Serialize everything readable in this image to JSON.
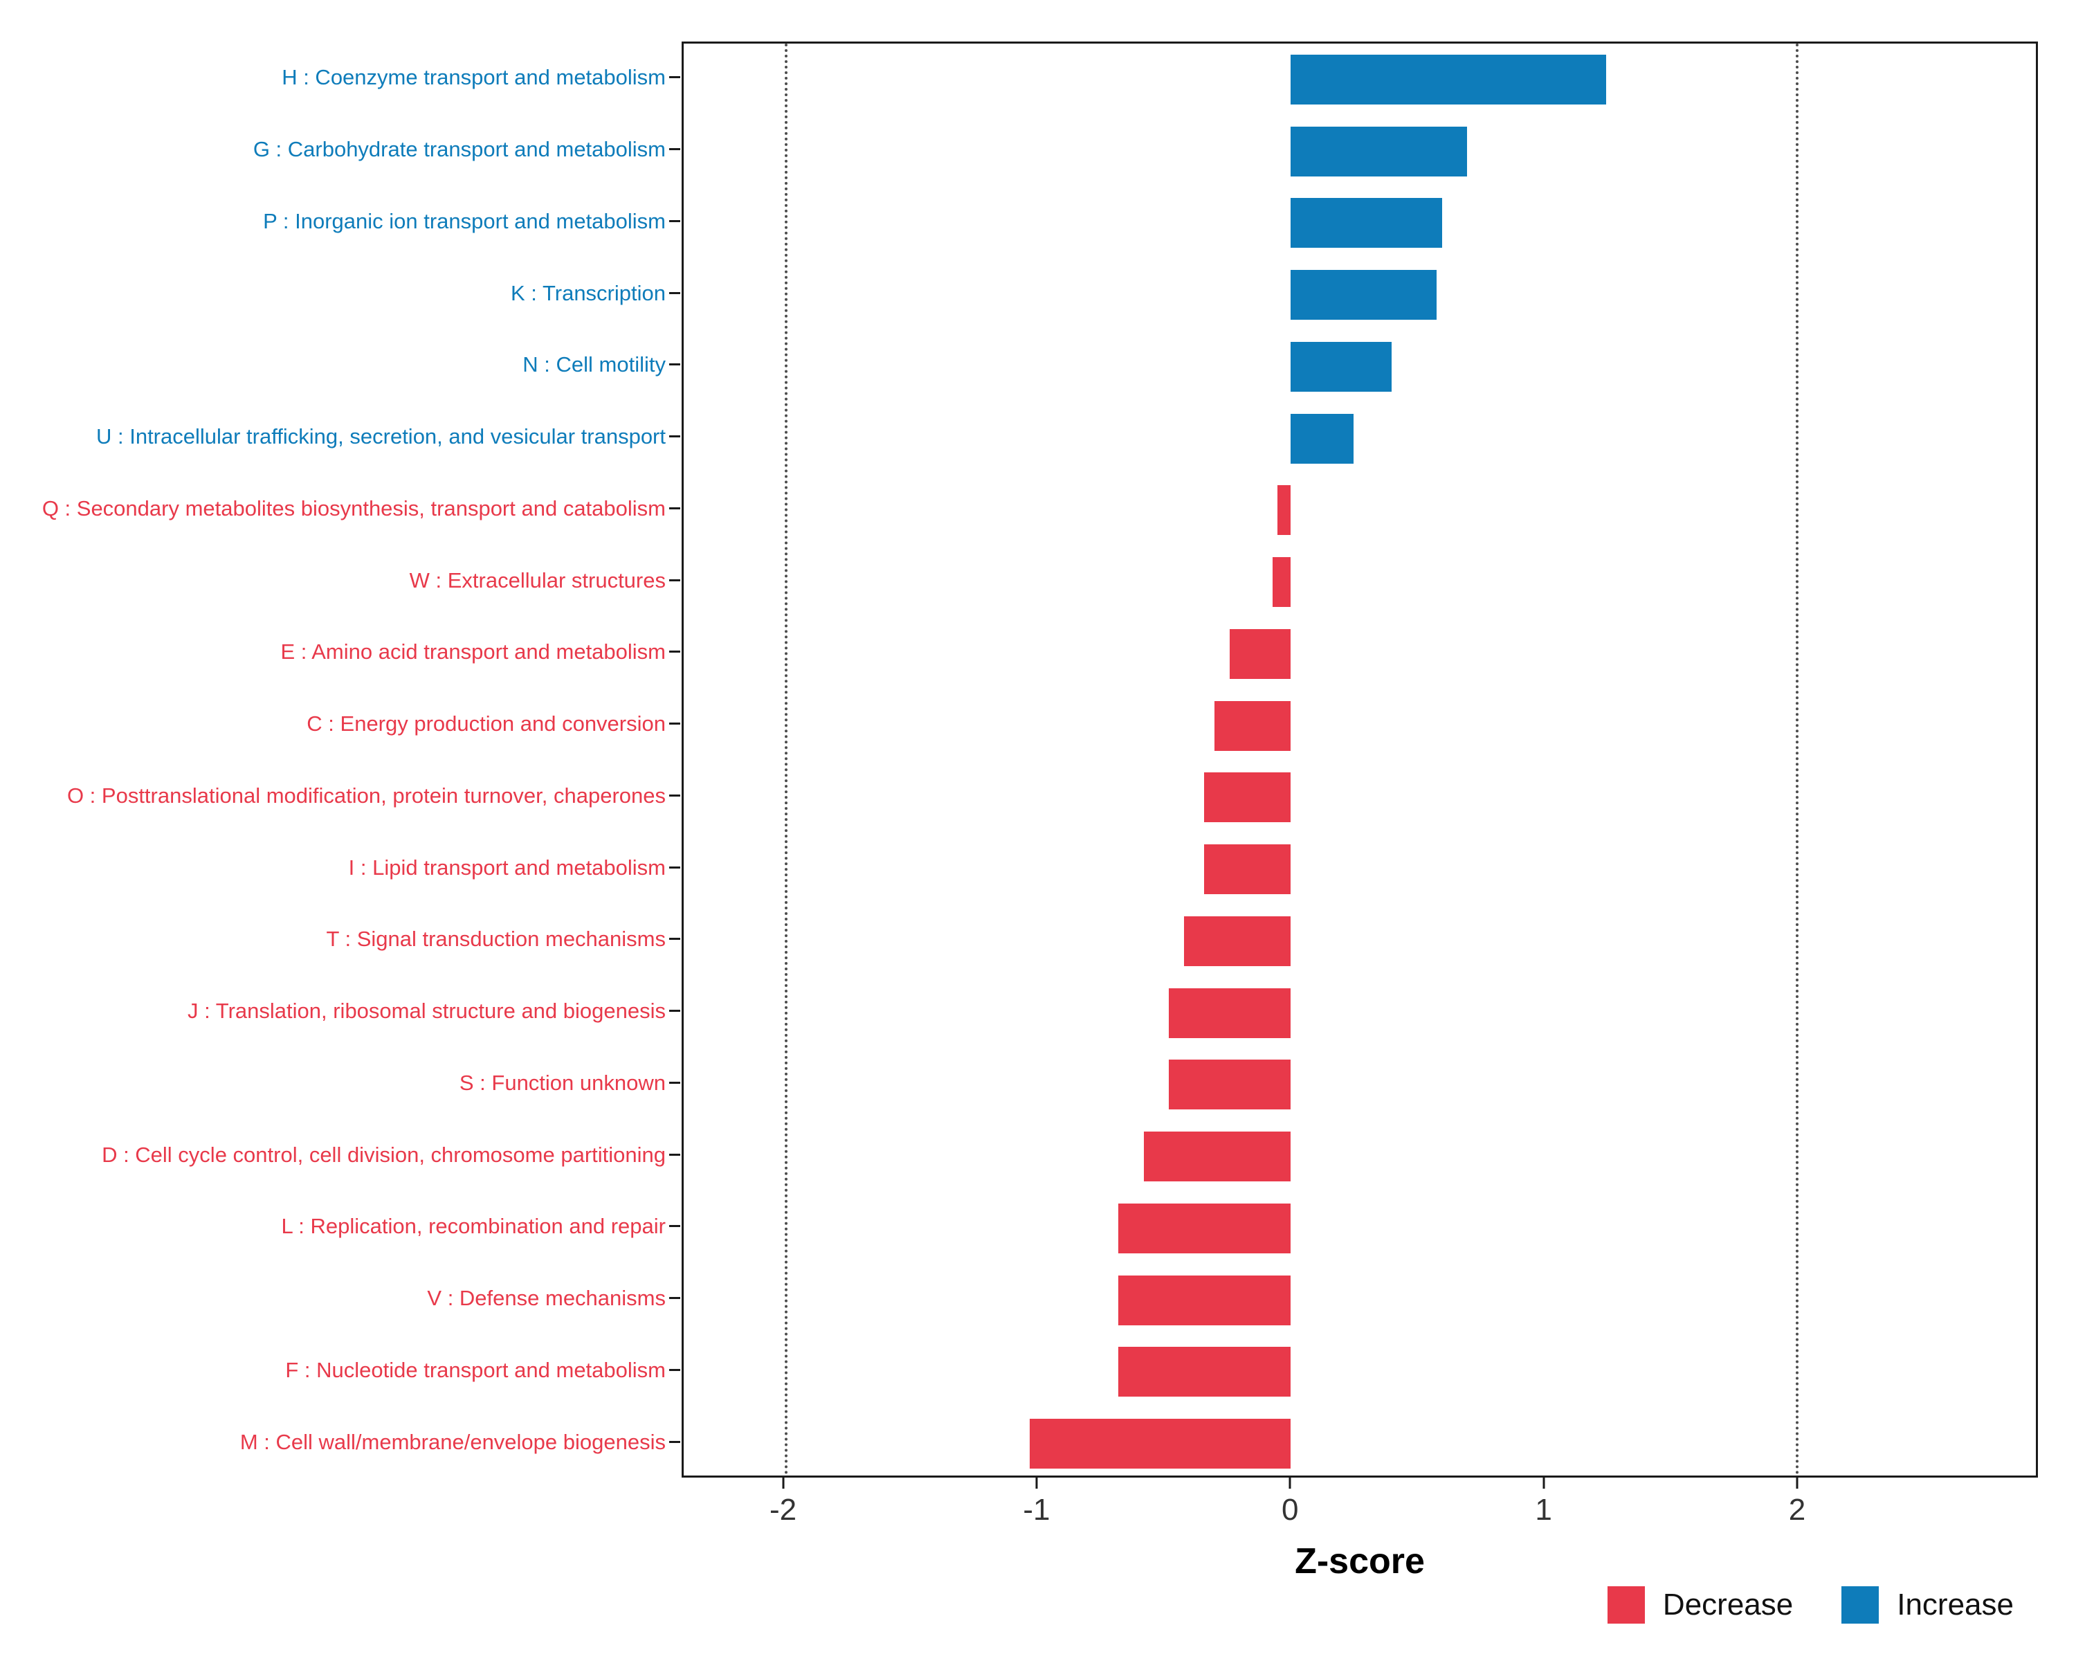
{
  "chart_data": {
    "type": "bar",
    "orientation": "horizontal",
    "title": "",
    "xlabel": "Z-score",
    "ylabel": "",
    "xlim": [
      -2.4,
      2.95
    ],
    "xticks": [
      -2,
      -1,
      0,
      1,
      2
    ],
    "reference_lines": [
      -2,
      2
    ],
    "grid": false,
    "legend_position": "bottom-right",
    "colors": {
      "increase": "#0E7CBA",
      "decrease": "#E8394A",
      "axis_text": "#333333",
      "axis_title": "#000000",
      "ref_line": "#4d4d4d",
      "panel_border": "#1a1a1a"
    },
    "legend": {
      "items": [
        {
          "label": "Decrease",
          "key": "decrease"
        },
        {
          "label": "Increase",
          "key": "increase"
        }
      ]
    },
    "items": [
      {
        "label": "H : Coenzyme transport and metabolism",
        "value": 1.25,
        "direction": "increase"
      },
      {
        "label": "G : Carbohydrate transport and metabolism",
        "value": 0.7,
        "direction": "increase"
      },
      {
        "label": "P : Inorganic ion transport and metabolism",
        "value": 0.6,
        "direction": "increase"
      },
      {
        "label": "K : Transcription",
        "value": 0.58,
        "direction": "increase"
      },
      {
        "label": "N : Cell motility",
        "value": 0.4,
        "direction": "increase"
      },
      {
        "label": "U : Intracellular trafficking, secretion, and vesicular transport",
        "value": 0.25,
        "direction": "increase"
      },
      {
        "label": "Q : Secondary metabolites biosynthesis, transport and catabolism",
        "value": -0.05,
        "direction": "decrease"
      },
      {
        "label": "W : Extracellular structures",
        "value": -0.07,
        "direction": "decrease"
      },
      {
        "label": "E : Amino acid transport and metabolism",
        "value": -0.24,
        "direction": "decrease"
      },
      {
        "label": "C : Energy production and conversion",
        "value": -0.3,
        "direction": "decrease"
      },
      {
        "label": "O : Posttranslational modification, protein turnover, chaperones",
        "value": -0.34,
        "direction": "decrease"
      },
      {
        "label": "I : Lipid transport and metabolism",
        "value": -0.34,
        "direction": "decrease"
      },
      {
        "label": "T : Signal transduction mechanisms",
        "value": -0.42,
        "direction": "decrease"
      },
      {
        "label": "J : Translation, ribosomal structure and biogenesis",
        "value": -0.48,
        "direction": "decrease"
      },
      {
        "label": "S : Function unknown",
        "value": -0.48,
        "direction": "decrease"
      },
      {
        "label": "D : Cell cycle control, cell division, chromosome partitioning",
        "value": -0.58,
        "direction": "decrease"
      },
      {
        "label": "L : Replication, recombination and repair",
        "value": -0.68,
        "direction": "decrease"
      },
      {
        "label": "V : Defense mechanisms",
        "value": -0.68,
        "direction": "decrease"
      },
      {
        "label": "F : Nucleotide transport and metabolism",
        "value": -0.68,
        "direction": "decrease"
      },
      {
        "label": "M : Cell wall/membrane/envelope biogenesis",
        "value": -1.03,
        "direction": "decrease"
      }
    ]
  }
}
